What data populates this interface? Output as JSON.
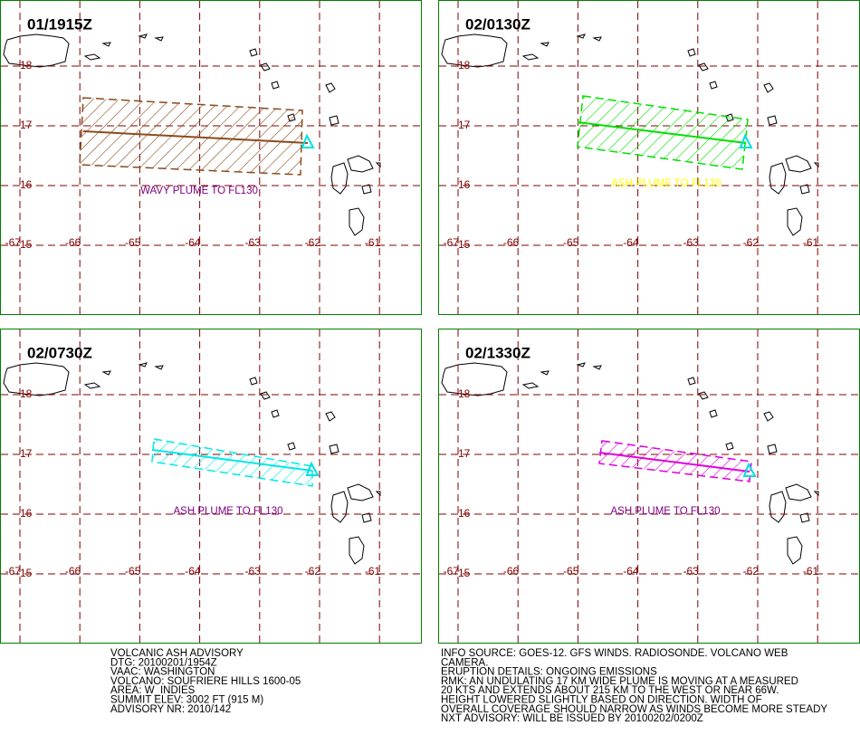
{
  "panels": [
    {
      "time": "01/1915Z",
      "plume_label": "WAVY PLUME TO FL130",
      "plume_color": "#8b4a1c",
      "label_color": "#800080"
    },
    {
      "time": "02/0130Z",
      "plume_label": "ASH PLUME TO FL130",
      "plume_color": "#00e000",
      "label_color": "#ffff00"
    },
    {
      "time": "02/0730Z",
      "plume_label": "ASH PLUME TO FL130",
      "plume_color": "#00e8e8",
      "label_color": "#800080"
    },
    {
      "time": "02/1330Z",
      "plume_label": "ASH PLUME TO FL130",
      "plume_color": "#e000e0",
      "label_color": "#800080"
    }
  ],
  "map_grid": {
    "latitudes": [
      "18",
      "17",
      "16",
      "15"
    ],
    "longitudes": [
      "-67",
      "-66",
      "-65",
      "-64",
      "-63",
      "-62",
      "-61"
    ]
  },
  "advisory_left": [
    "VOLCANIC ASH ADVISORY",
    "DTG: 20100201/1954Z",
    "VAAC: WASHINGTON",
    "VOLCANO: SOUFRIERE HILLS 1600-05",
    "AREA: W_INDIES",
    "SUMMIT ELEV: 3002 FT (915 M)",
    "ADVISORY NR: 2010/142"
  ],
  "advisory_right": [
    "INFO SOURCE: GOES-12. GFS WINDS. RADIOSONDE. VOLCANO WEB",
    "CAMERA.",
    "ERUPTION DETAILS: ONGOING EMISSIONS",
    "RMK: AN UNDULATING 17 KM WIDE PLUME IS MOVING AT A MEASURED",
    "20 KTS AND EXTENDS ABOUT 215 KM TO THE WEST OR NEAR 66W.",
    "HEIGHT LOWERED SLIGHTLY BASED ON DIRECTION. WIDTH OF",
    "OVERALL COVERAGE SHOULD NARROW AS WINDS BECOME MORE STEADY",
    "NXT ADVISORY: WILL BE ISSUED BY 20100202/0200Z"
  ]
}
